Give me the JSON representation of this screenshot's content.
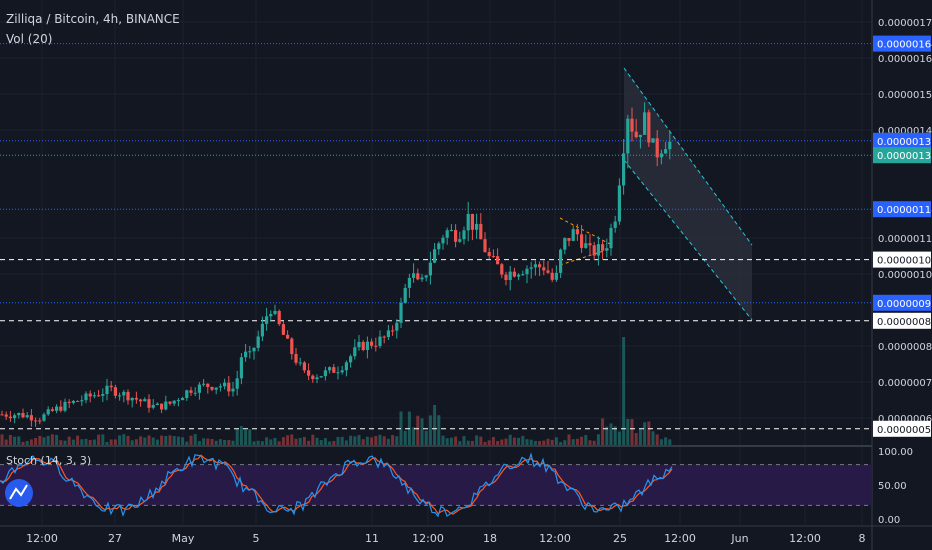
{
  "header": {
    "symbol": "Zilliqa / Bitcoin, 4h, BINANCE",
    "volume_label": "Vol (20)",
    "stoch_label": "Stoch (14, 3, 3)"
  },
  "colors": {
    "background": "#131722",
    "up": "#26a69a",
    "down": "#ef5350",
    "grid": "#1e222d",
    "axis_text": "#d1d4dc",
    "blue_line": "#2962ff",
    "teal_line": "#26a69a",
    "channel": "#26c6da",
    "stoch_k": "#2196f3",
    "stoch_d": "#ff5722",
    "stoch_band": "#2a1b4a"
  },
  "chart_data": {
    "type": "candlestick",
    "price_ticks": [
      "0.00000170",
      "0.00000160",
      "0.00000150",
      "0.00000140",
      "0.00000110",
      "0.00000100",
      "0.00000080",
      "0.00000070",
      "0.00000060"
    ],
    "price_labels": [
      {
        "value": 1.64e-06,
        "text": "0.00000164",
        "style": "blue"
      },
      {
        "value": 1.37e-06,
        "text": "0.00000137",
        "style": "blue"
      },
      {
        "value": 1.33e-06,
        "text": "0.00000133",
        "style": "teal"
      },
      {
        "value": 1.18e-06,
        "text": "0.00000118",
        "style": "blue"
      },
      {
        "value": 1.04e-06,
        "text": "0.00000104",
        "style": "white"
      },
      {
        "value": 9.2e-07,
        "text": "0.00000092",
        "style": "blue"
      },
      {
        "value": 8.7e-07,
        "text": "0.00000087",
        "style": "white"
      },
      {
        "value": 5.7e-07,
        "text": "0.00000057",
        "style": "white"
      }
    ],
    "ylim": [
      5.6e-07,
      1.75e-06
    ],
    "x_ticks": [
      "12:00",
      "27",
      "May",
      "5",
      "11",
      "12:00",
      "18",
      "12:00",
      "25",
      "12:00",
      "Jun",
      "12:00",
      "8"
    ],
    "stoch_ticks": [
      "100.00",
      "50.00",
      "0.00"
    ],
    "stoch_ylim": [
      0,
      100
    ],
    "stoch_band": [
      20,
      80
    ]
  }
}
